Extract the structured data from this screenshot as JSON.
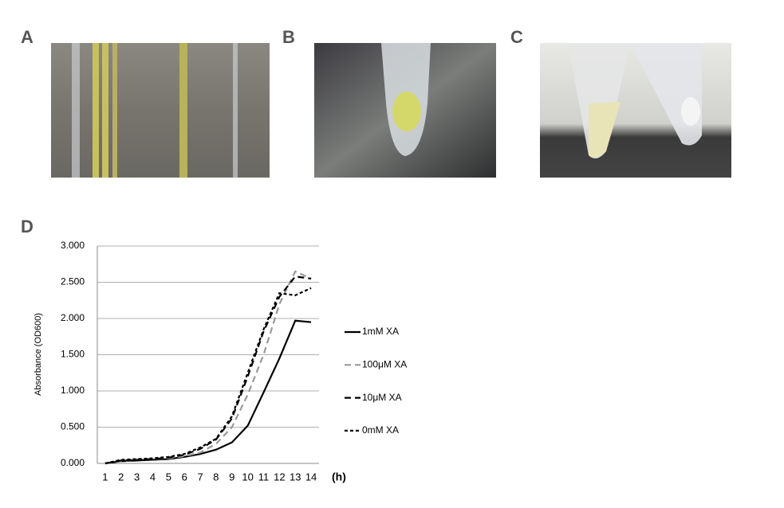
{
  "panels": [
    "A",
    "B",
    "C",
    "D"
  ],
  "chart_data": {
    "type": "line",
    "y_label": "Absorbance (OD600)",
    "x_label": "(h)",
    "categories": [
      "1",
      "2",
      "3",
      "4",
      "5",
      "6",
      "7",
      "8",
      "9",
      "10",
      "11",
      "12",
      "13",
      "14"
    ],
    "ylim": [
      0,
      3
    ],
    "yticks": [
      {
        "value": 0,
        "label": "0.000"
      },
      {
        "value": 0.5,
        "label": "0.500"
      },
      {
        "value": 1,
        "label": "1.000"
      },
      {
        "value": 1.5,
        "label": "1.500"
      },
      {
        "value": 2,
        "label": "2.000"
      },
      {
        "value": 2.5,
        "label": "2.500"
      },
      {
        "value": 3,
        "label": "3.000"
      }
    ],
    "grid": true,
    "legend": "right",
    "series": [
      {
        "name": "1mM XA",
        "color": "#000000",
        "dash": "none",
        "values": [
          0,
          0.03,
          0.04,
          0.05,
          0.06,
          0.09,
          0.13,
          0.19,
          0.29,
          0.52,
          0.98,
          1.45,
          1.97,
          1.95
        ]
      },
      {
        "name": "100μM XA",
        "color": "#999999",
        "dash": "8,5",
        "values": [
          0,
          0.03,
          0.05,
          0.06,
          0.07,
          0.1,
          0.15,
          0.27,
          0.5,
          0.95,
          1.5,
          2.2,
          2.65,
          2.55
        ]
      },
      {
        "name": "10μM XA",
        "color": "#000000",
        "dash": "8,5",
        "values": [
          0,
          0.04,
          0.05,
          0.06,
          0.08,
          0.12,
          0.2,
          0.33,
          0.62,
          1.2,
          1.82,
          2.3,
          2.58,
          2.55
        ]
      },
      {
        "name": "0mM XA",
        "color": "#000000",
        "dash": "4,3",
        "values": [
          0,
          0.05,
          0.06,
          0.07,
          0.09,
          0.13,
          0.22,
          0.34,
          0.65,
          1.25,
          1.85,
          2.35,
          2.32,
          2.42
        ]
      }
    ]
  }
}
